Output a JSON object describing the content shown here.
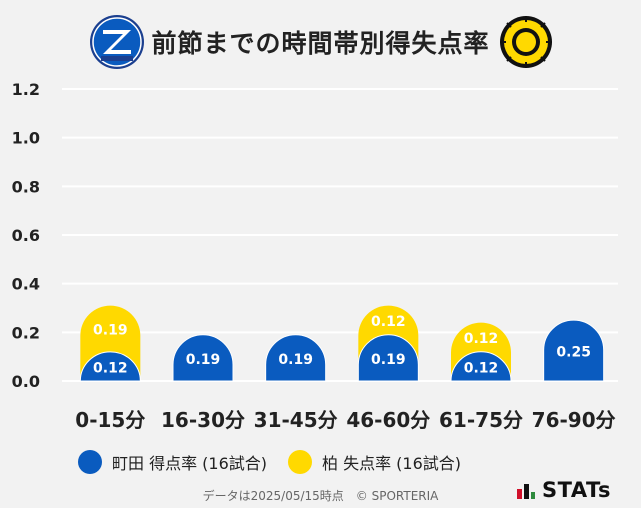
{
  "title": "前節までの時間帯別得失点率",
  "colors": {
    "machida": "#0a5bbf",
    "kashiwa": "#ffd900",
    "grid": "#ffffff",
    "background": "#f2f2f2"
  },
  "logos": {
    "left": "zelvia-crest-icon",
    "right": "kashiwa-reysol-crest-icon"
  },
  "chart_data": {
    "type": "bar",
    "categories": [
      "0-15分",
      "16-30分",
      "31-45分",
      "46-60分",
      "61-75分",
      "76-90分"
    ],
    "series": [
      {
        "name": "町田 得点率 (16試合)",
        "values": [
          0.12,
          0.19,
          0.19,
          0.19,
          0.12,
          0.25
        ],
        "labels": [
          "0.12",
          "0.19",
          "0.19",
          "0.19",
          "0.12",
          "0.25"
        ]
      },
      {
        "name": "柏 失点率 (16試合)",
        "values": [
          0.19,
          0.0,
          0.0,
          0.12,
          0.12,
          0.0
        ],
        "labels": [
          "0.19",
          "",
          "",
          "0.12",
          "0.12",
          ""
        ]
      }
    ],
    "y_ticks": [
      "0.0",
      "0.2",
      "0.4",
      "0.6",
      "0.8",
      "1.0",
      "1.2"
    ],
    "ylim": [
      0,
      1.2
    ],
    "grid": true,
    "legend_position": "bottom"
  },
  "footer": {
    "note": "データは2025/05/15時点　© SPORTERIA",
    "brand": "STATs"
  }
}
